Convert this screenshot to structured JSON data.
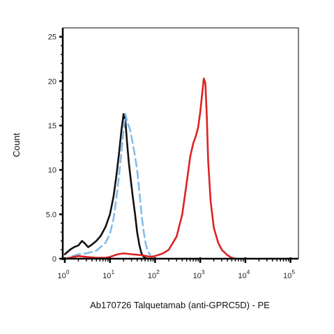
{
  "chart_data": {
    "type": "line",
    "title": "",
    "xlabel": "Ab170726 Talquetamab (anti-GPRC5D) - PE",
    "ylabel": "Count",
    "xscale": "log",
    "xlim": [
      0.9,
      150000
    ],
    "ylim": [
      0,
      26
    ],
    "xticks": [
      {
        "value": 1,
        "base": "10",
        "exp": "0"
      },
      {
        "value": 10,
        "base": "10",
        "exp": "1"
      },
      {
        "value": 100,
        "base": "10",
        "exp": "2"
      },
      {
        "value": 1000,
        "base": "10",
        "exp": "3"
      },
      {
        "value": 10000,
        "base": "10",
        "exp": "4"
      },
      {
        "value": 100000,
        "base": "10",
        "exp": "5"
      }
    ],
    "yticks": [
      {
        "value": 0,
        "label": "0"
      },
      {
        "value": 5,
        "label": "5.0"
      },
      {
        "value": 10,
        "label": "10"
      },
      {
        "value": 15,
        "label": "15"
      },
      {
        "value": 20,
        "label": "20"
      },
      {
        "value": 25,
        "label": "25"
      }
    ],
    "grid": false,
    "series": [
      {
        "color": "#111111",
        "dash": "solid",
        "x": [
          1,
          1.3,
          1.6,
          2.0,
          2.4,
          2.8,
          3.3,
          4.0,
          5.0,
          6.3,
          8.0,
          10,
          12,
          14,
          16,
          18,
          20,
          22,
          24,
          26,
          28,
          32,
          36,
          40,
          45,
          50,
          56,
          63,
          70
        ],
        "y": [
          0.5,
          1.0,
          1.3,
          1.5,
          2.0,
          1.7,
          1.3,
          1.6,
          2.0,
          2.6,
          3.6,
          5.0,
          7.0,
          9.5,
          12.0,
          14.5,
          16.3,
          15.5,
          13.0,
          11.0,
          9.5,
          7.0,
          5.0,
          3.0,
          1.5,
          0.6,
          0.2,
          0.05,
          0
        ]
      },
      {
        "color": "#85bbe8",
        "dash": "dashed",
        "x": [
          1.5,
          2,
          3,
          5,
          8,
          10,
          12,
          14,
          16,
          18,
          20,
          22,
          24,
          26,
          28,
          32,
          36,
          40,
          45,
          50,
          56,
          63,
          70,
          80,
          90,
          100
        ],
        "y": [
          0.3,
          0.5,
          0.6,
          0.9,
          1.8,
          2.8,
          4.5,
          7.0,
          9.5,
          12.0,
          14.5,
          16.3,
          15.5,
          15.0,
          14.5,
          13.0,
          11.5,
          10.0,
          7.5,
          5.0,
          3.0,
          1.5,
          0.8,
          0.3,
          0.1,
          0
        ]
      },
      {
        "color": "#dd2222",
        "dash": "solid",
        "x": [
          1,
          2,
          3,
          5,
          8,
          10,
          15,
          20,
          30,
          50,
          80,
          100,
          150,
          200,
          300,
          400,
          500,
          600,
          700,
          800,
          900,
          1000,
          1100,
          1200,
          1300,
          1400,
          1500,
          1700,
          2000,
          2500,
          3000,
          4000,
          5000,
          6000
        ],
        "y": [
          0,
          0.3,
          0.2,
          0.1,
          0.1,
          0.2,
          0.5,
          0.6,
          0.5,
          0.4,
          0.2,
          0.3,
          0.6,
          1.0,
          2.5,
          5.0,
          8.5,
          11.5,
          13.0,
          13.8,
          14.8,
          16.5,
          18.5,
          20.3,
          19.8,
          16.0,
          11.0,
          6.5,
          3.5,
          1.8,
          1.0,
          0.4,
          0.1,
          0
        ]
      }
    ]
  }
}
